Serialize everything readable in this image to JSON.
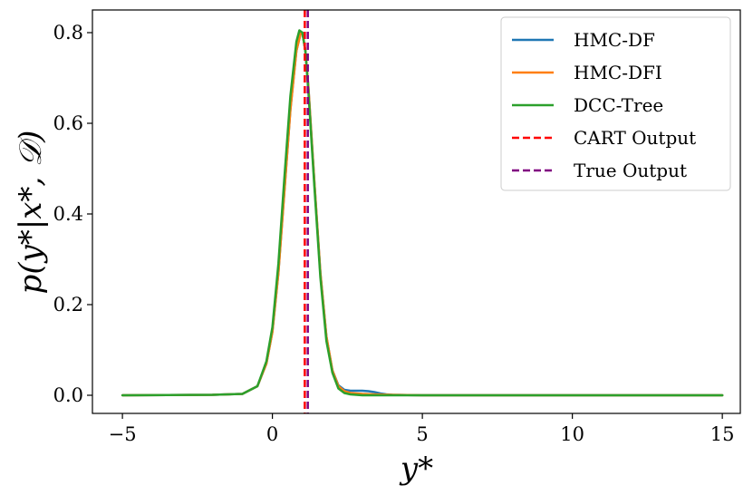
{
  "chart_data": {
    "type": "line",
    "xlabel": "y*",
    "ylabel": "p(y*|x*, 𝒟)",
    "xlim": [
      -6.0,
      15.6
    ],
    "ylim": [
      -0.04,
      0.85
    ],
    "xticks": [
      -5,
      0,
      5,
      10,
      15
    ],
    "xtick_labels": [
      "−5",
      "0",
      "5",
      "10",
      "15"
    ],
    "yticks": [
      0.0,
      0.2,
      0.4,
      0.6,
      0.8
    ],
    "ytick_labels": [
      "0.0",
      "0.2",
      "0.4",
      "0.6",
      "0.8"
    ],
    "grid": false,
    "legend_position": "top-right",
    "series": [
      {
        "name": "HMC-DF",
        "color": "#1f77b4",
        "style": "solid",
        "x": [
          -5,
          -2,
          -1,
          -0.5,
          -0.2,
          0,
          0.2,
          0.4,
          0.6,
          0.8,
          0.95,
          1.0,
          1.1,
          1.2,
          1.4,
          1.6,
          1.8,
          2.0,
          2.2,
          2.4,
          2.6,
          2.8,
          3.0,
          3.2,
          3.4,
          3.6,
          3.8,
          4.0,
          4.5,
          5,
          15
        ],
        "y": [
          0.0,
          0.001,
          0.003,
          0.02,
          0.07,
          0.14,
          0.27,
          0.45,
          0.63,
          0.76,
          0.8,
          0.8,
          0.76,
          0.68,
          0.47,
          0.27,
          0.13,
          0.055,
          0.022,
          0.012,
          0.01,
          0.01,
          0.01,
          0.009,
          0.007,
          0.004,
          0.002,
          0.001,
          0.0005,
          0.0,
          0.0
        ]
      },
      {
        "name": "HMC-DFI",
        "color": "#ff7f0e",
        "style": "solid",
        "x": [
          -5,
          -2,
          -1,
          -0.5,
          -0.2,
          0,
          0.2,
          0.4,
          0.6,
          0.8,
          0.95,
          1.0,
          1.1,
          1.2,
          1.4,
          1.6,
          1.8,
          2.0,
          2.2,
          2.4,
          2.6,
          2.8,
          3.0,
          3.4,
          4.0,
          5,
          15
        ],
        "y": [
          0.0,
          0.001,
          0.003,
          0.02,
          0.07,
          0.14,
          0.27,
          0.45,
          0.63,
          0.76,
          0.8,
          0.8,
          0.76,
          0.68,
          0.47,
          0.27,
          0.13,
          0.055,
          0.02,
          0.009,
          0.005,
          0.004,
          0.003,
          0.002,
          0.001,
          0.0,
          0.0
        ]
      },
      {
        "name": "DCC-Tree",
        "color": "#2ca02c",
        "style": "solid",
        "x": [
          -5,
          -2,
          -1,
          -0.5,
          -0.2,
          0,
          0.2,
          0.4,
          0.6,
          0.8,
          0.9,
          1.0,
          1.1,
          1.2,
          1.4,
          1.6,
          1.8,
          2.0,
          2.2,
          2.4,
          2.6,
          2.8,
          3.0,
          3.5,
          4.0,
          5,
          15
        ],
        "y": [
          0.0,
          0.001,
          0.003,
          0.02,
          0.075,
          0.15,
          0.29,
          0.48,
          0.66,
          0.78,
          0.805,
          0.8,
          0.76,
          0.67,
          0.46,
          0.26,
          0.12,
          0.05,
          0.015,
          0.005,
          0.002,
          0.001,
          0.0,
          0.0,
          0.0,
          0.0,
          0.0
        ]
      }
    ],
    "vlines": [
      {
        "name": "CART Output",
        "x": 1.08,
        "color": "#ff0000",
        "style": "dashed"
      },
      {
        "name": "True Output",
        "x": 1.18,
        "color": "#800080",
        "style": "dashed"
      }
    ]
  }
}
